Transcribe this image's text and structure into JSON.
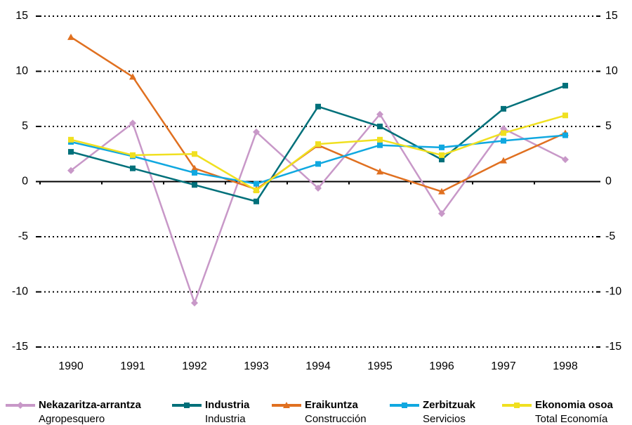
{
  "chart_data": {
    "type": "line",
    "categories": [
      "1990",
      "1991",
      "1992",
      "1993",
      "1994",
      "1995",
      "1996",
      "1997",
      "1998"
    ],
    "series": [
      {
        "name": "Nekazaritza-arrantza",
        "name_es": "Agropesquero",
        "color": "#c898c8",
        "marker": "diamond",
        "values": [
          1.0,
          5.3,
          -11.0,
          4.5,
          -0.6,
          6.1,
          -2.9,
          4.8,
          2.0
        ]
      },
      {
        "name": "Industria",
        "name_es": "Industria",
        "color": "#00707a",
        "marker": "square",
        "values": [
          2.7,
          1.2,
          -0.3,
          -1.8,
          6.8,
          5.0,
          2.0,
          6.6,
          8.7
        ]
      },
      {
        "name": "Eraikuntza",
        "name_es": "Construcción",
        "color": "#e07020",
        "marker": "triangle",
        "values": [
          13.1,
          9.5,
          1.2,
          -0.7,
          3.3,
          0.9,
          -0.9,
          1.9,
          4.4
        ]
      },
      {
        "name": "Zerbitzuak",
        "name_es": "Servicios",
        "color": "#10a8e0",
        "marker": "square",
        "values": [
          3.6,
          2.3,
          0.8,
          -0.2,
          1.6,
          3.3,
          3.1,
          3.7,
          4.2
        ]
      },
      {
        "name": "Ekonomia osoa",
        "name_es": "Total Economía",
        "color": "#f0e020",
        "marker": "square",
        "values": [
          3.8,
          2.4,
          2.5,
          -0.8,
          3.4,
          3.8,
          2.4,
          4.4,
          6.0
        ]
      }
    ],
    "ylim": [
      -15,
      15
    ],
    "yticks": [
      -15,
      -10,
      -5,
      0,
      5,
      10,
      15
    ],
    "y2lim": [
      -15,
      15
    ],
    "y2ticks": [
      -15,
      -10,
      -5,
      0,
      5,
      10,
      15
    ],
    "grid": true,
    "legend": "bottom"
  }
}
